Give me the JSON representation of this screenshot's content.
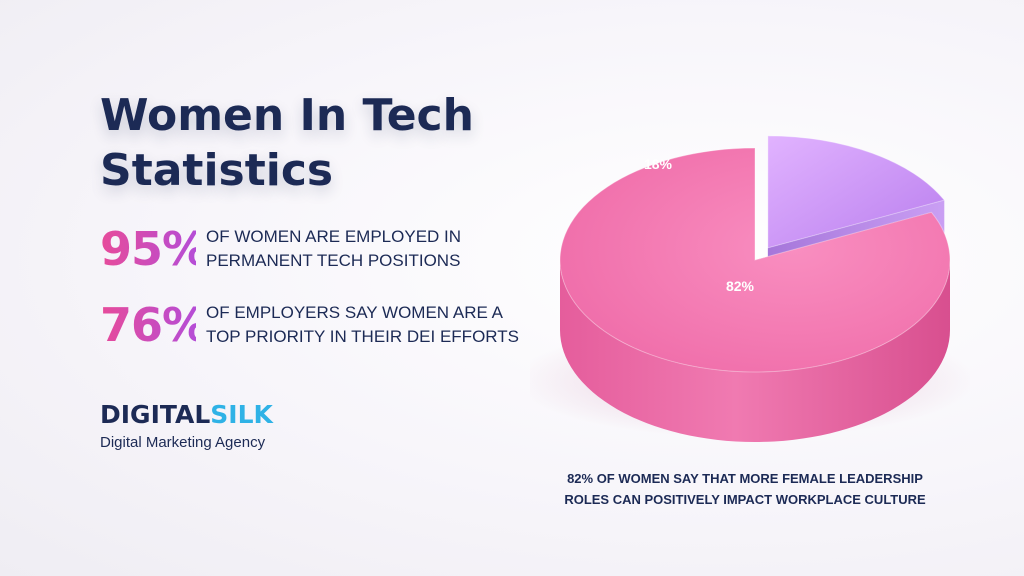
{
  "title_line1": "Women In Tech",
  "title_line2": "Statistics",
  "stats": [
    {
      "value": "95%",
      "text_line1": "OF WOMEN ARE EMPLOYED IN",
      "text_line2": "PERMANENT TECH POSITIONS"
    },
    {
      "value": "76%",
      "text_line1": "OF EMPLOYERS SAY WOMEN ARE A",
      "text_line2": "TOP PRIORITY IN THEIR DEI EFFORTS"
    }
  ],
  "brand": {
    "name_part1": "DIGITAL",
    "name_part2": "SILK",
    "tagline": "Digital Marketing Agency"
  },
  "caption_line1": "82% OF WOMEN SAY THAT MORE FEMALE LEADERSHIP",
  "caption_line2": "ROLES CAN POSITIVELY IMPACT WORKPLACE CULTURE",
  "colors": {
    "navy": "#1c2a55",
    "pink": "#f06aa8",
    "purple": "#c58bf2",
    "brand_blue": "#2fb2e6"
  },
  "chart_data": {
    "type": "pie",
    "title": "",
    "labels": [
      "18%",
      "82%"
    ],
    "values": [
      18,
      82
    ],
    "colors": [
      "#c58bf2",
      "#f06aa8"
    ],
    "exploded": [
      true,
      false
    ],
    "style": "3d"
  }
}
